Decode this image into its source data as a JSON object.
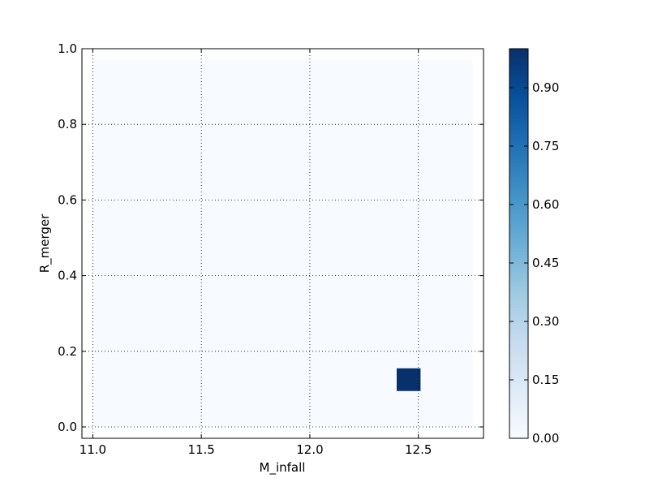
{
  "chart_data": {
    "type": "heatmap",
    "title": "",
    "xlabel": "M_infall",
    "ylabel": "R_merger",
    "xlim": [
      10.95,
      12.8
    ],
    "ylim": [
      -0.03,
      1.0
    ],
    "x_ticks": [
      "11.0",
      "11.5",
      "12.0",
      "12.5"
    ],
    "y_ticks": [
      "0.0",
      "0.2",
      "0.4",
      "0.6",
      "0.8",
      "1.0"
    ],
    "grid": true,
    "extent": {
      "x": [
        11.0,
        12.75
      ],
      "y": [
        0.0,
        0.97
      ]
    },
    "background_value": 0.0,
    "cells": [
      {
        "x0": 12.4,
        "x1": 12.51,
        "y0": 0.095,
        "y1": 0.155,
        "value": 1.0
      }
    ],
    "colorbar": {
      "range": [
        0.0,
        1.0
      ],
      "tick_values": [
        0.0,
        0.15,
        0.3,
        0.45,
        0.6,
        0.75,
        0.9
      ],
      "tick_labels": [
        "0.00",
        "0.15",
        "0.30",
        "0.45",
        "0.60",
        "0.75",
        "0.90"
      ]
    },
    "colormap": "Blues",
    "colors": {
      "low": "#f7fbff",
      "mid": "#6baed6",
      "high": "#08306b"
    }
  }
}
